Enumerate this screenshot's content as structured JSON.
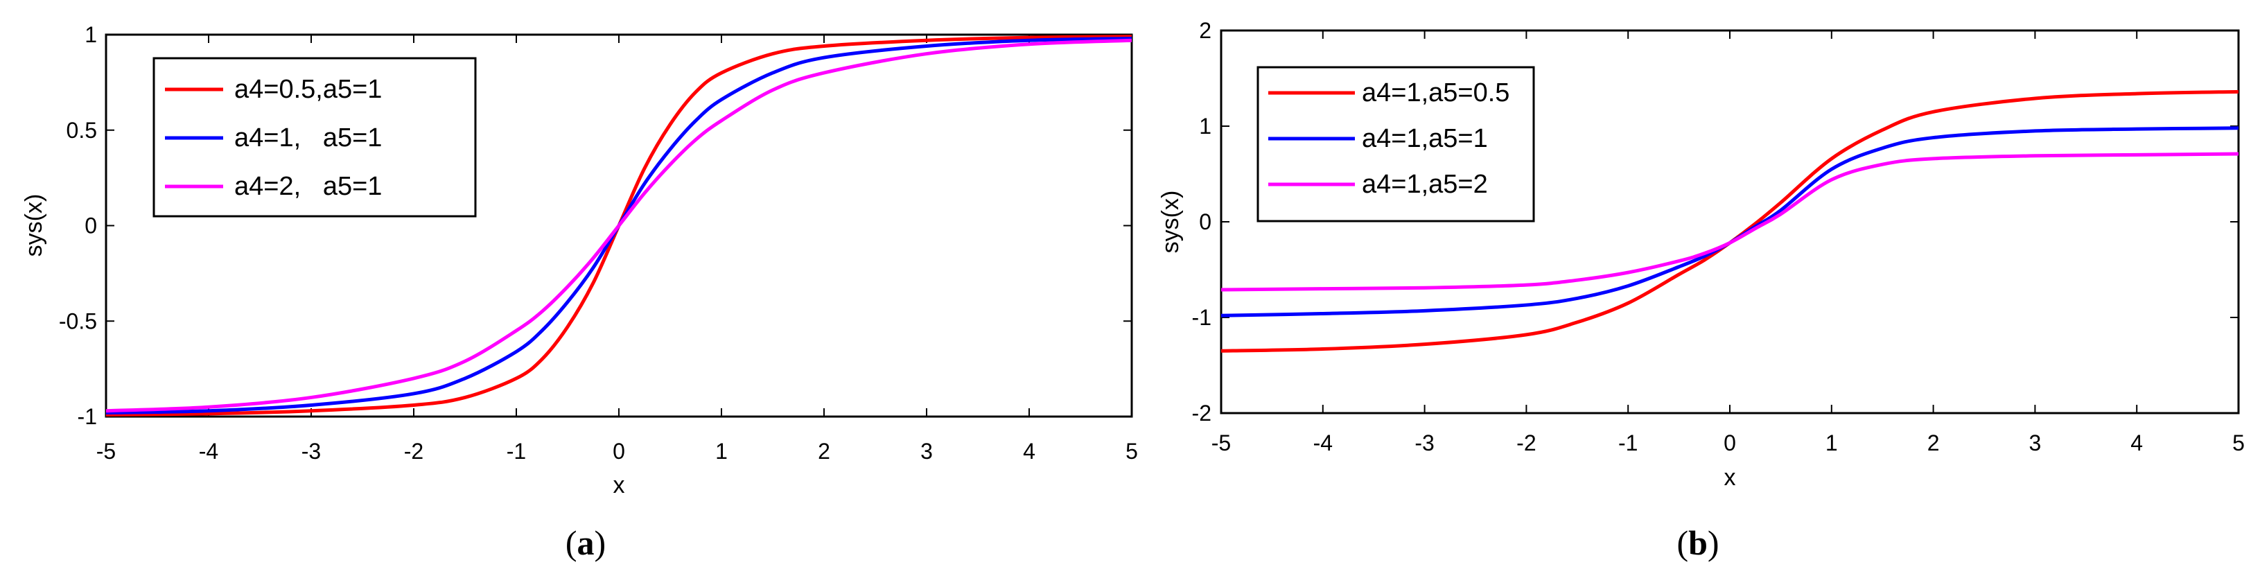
{
  "chart_data": [
    {
      "type": "line",
      "caption": "(a)",
      "caption_letter": "a",
      "title": "",
      "xlabel": "x",
      "ylabel": "sys(x)",
      "xlim": [
        -5,
        5
      ],
      "ylim": [
        -1,
        1
      ],
      "xticks": [
        "-5",
        "-4",
        "-3",
        "-2",
        "-1",
        "0",
        "1",
        "2",
        "3",
        "4",
        "5"
      ],
      "yticks": [
        "1",
        "0.5",
        "0",
        "-0.5",
        "-1"
      ],
      "grid": false,
      "legend_position": "top-left",
      "series": [
        {
          "name": "a4=0.5,a5=1",
          "color": "#ff0000",
          "x": [
            -5,
            -4,
            -3,
            -2,
            -1.5,
            -1,
            -0.75,
            -0.5,
            -0.25,
            0,
            0.25,
            0.5,
            0.75,
            1,
            1.5,
            2,
            3,
            4,
            5
          ],
          "y": [
            -0.99,
            -0.985,
            -0.97,
            -0.94,
            -0.9,
            -0.8,
            -0.7,
            -0.53,
            -0.3,
            0,
            0.3,
            0.53,
            0.7,
            0.8,
            0.9,
            0.94,
            0.97,
            0.985,
            0.99
          ]
        },
        {
          "name": "a4=1,   a5=1",
          "color": "#0000ff",
          "x": [
            -5,
            -4,
            -3,
            -2,
            -1.5,
            -1,
            -0.75,
            -0.5,
            -0.25,
            0,
            0.25,
            0.5,
            0.75,
            1,
            1.5,
            2,
            3,
            4,
            5
          ],
          "y": [
            -0.98,
            -0.97,
            -0.94,
            -0.88,
            -0.8,
            -0.66,
            -0.55,
            -0.4,
            -0.22,
            0,
            0.22,
            0.4,
            0.55,
            0.66,
            0.8,
            0.88,
            0.94,
            0.97,
            0.98
          ]
        },
        {
          "name": "a4=2,   a5=1",
          "color": "#ff00ff",
          "x": [
            -5,
            -4,
            -3,
            -2,
            -1.5,
            -1,
            -0.75,
            -0.5,
            -0.25,
            0,
            0.25,
            0.5,
            0.75,
            1,
            1.5,
            2,
            3,
            4,
            5
          ],
          "y": [
            -0.97,
            -0.95,
            -0.9,
            -0.8,
            -0.71,
            -0.55,
            -0.45,
            -0.32,
            -0.17,
            0,
            0.17,
            0.32,
            0.45,
            0.55,
            0.71,
            0.8,
            0.9,
            0.95,
            0.97
          ]
        }
      ]
    },
    {
      "type": "line",
      "caption": "(b)",
      "caption_letter": "b",
      "title": "",
      "xlabel": "x",
      "ylabel": "sys(x)",
      "xlim": [
        -5,
        5
      ],
      "ylim": [
        -2,
        2
      ],
      "xticks": [
        "-5",
        "-4",
        "-3",
        "-2",
        "-1",
        "0",
        "1",
        "2",
        "3",
        "4",
        "5"
      ],
      "yticks": [
        "2",
        "1",
        "0",
        "-1",
        "-2"
      ],
      "grid": false,
      "legend_position": "top-left",
      "series": [
        {
          "name": "a4=1,a5=0.5",
          "color": "#ff0000",
          "x": [
            -5,
            -4,
            -3,
            -2,
            -1.5,
            -1,
            -0.5,
            -0.25,
            0,
            0.25,
            0.5,
            1,
            1.5,
            2,
            3,
            4,
            5
          ],
          "y": [
            -1.35,
            -1.33,
            -1.28,
            -1.18,
            -1.05,
            -0.85,
            -0.55,
            -0.4,
            -0.22,
            -0.02,
            0.2,
            0.66,
            0.96,
            1.15,
            1.29,
            1.34,
            1.36
          ]
        },
        {
          "name": "a4=1,a5=1",
          "color": "#0000ff",
          "x": [
            -5,
            -4,
            -3,
            -2,
            -1.5,
            -1,
            -0.5,
            -0.25,
            0,
            0.25,
            0.5,
            1,
            1.5,
            2,
            3,
            4,
            5
          ],
          "y": [
            -0.98,
            -0.96,
            -0.93,
            -0.87,
            -0.8,
            -0.67,
            -0.47,
            -0.36,
            -0.22,
            -0.05,
            0.12,
            0.55,
            0.77,
            0.88,
            0.95,
            0.97,
            0.98
          ]
        },
        {
          "name": "a4=1,a5=2",
          "color": "#ff00ff",
          "x": [
            -5,
            -4,
            -3,
            -2,
            -1.5,
            -1,
            -0.5,
            -0.25,
            0,
            0.25,
            0.5,
            1,
            1.5,
            2,
            3,
            4,
            5
          ],
          "y": [
            -0.71,
            -0.7,
            -0.69,
            -0.66,
            -0.61,
            -0.53,
            -0.41,
            -0.33,
            -0.22,
            -0.07,
            0.08,
            0.44,
            0.6,
            0.66,
            0.69,
            0.7,
            0.71
          ]
        }
      ]
    }
  ]
}
